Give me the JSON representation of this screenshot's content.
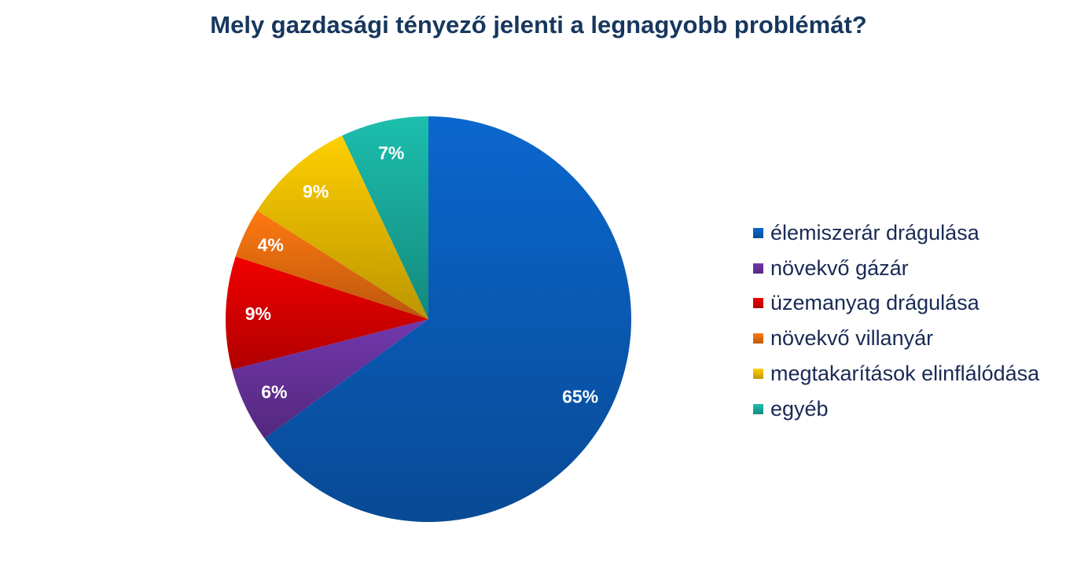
{
  "chart_data": {
    "type": "pie",
    "title": "Mely gazdasági tényező jelenti a legnagyobb problémát?",
    "categories": [
      "élemiszerár drágulása",
      "növekvő gázár",
      "üzemanyag drágulása",
      "növekvő villanyár",
      "megtakarítások elinflálódása",
      "egyéb"
    ],
    "values": [
      65,
      6,
      9,
      4,
      9,
      7
    ],
    "labels": [
      "65%",
      "6%",
      "9%",
      "4%",
      "9%",
      "7%"
    ],
    "colors": [
      "#0a5fbf",
      "#6a33a0",
      "#e00000",
      "#f07010",
      "#f0c000",
      "#1ab0a0"
    ],
    "legend_position": "right"
  }
}
